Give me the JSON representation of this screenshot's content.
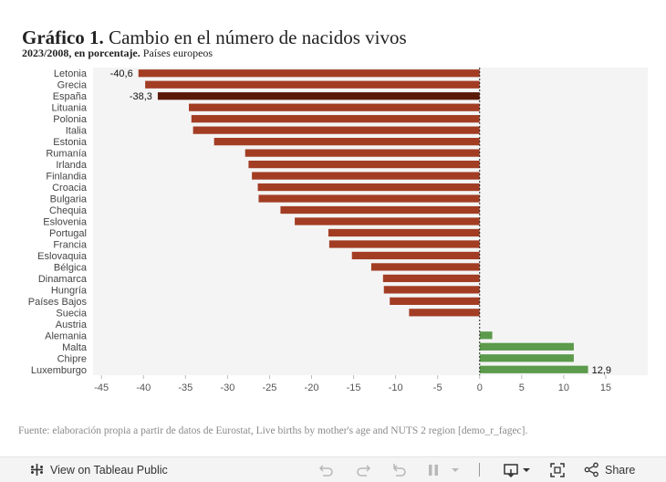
{
  "header": {
    "title_bold": "Gráfico 1.",
    "title_rest": "Cambio en el número de nacidos vivos",
    "subtitle_bold": "2023/2008, en porcentaje.",
    "subtitle_rest": "Países europeos"
  },
  "chart_data": {
    "type": "bar",
    "orientation": "horizontal",
    "title": "Cambio en el número de nacidos vivos",
    "subtitle": "2023/2008, en porcentaje. Países europeos",
    "xlabel": "",
    "ylabel": "",
    "xlim": [
      -46,
      20
    ],
    "xticks": [
      -45,
      -40,
      -35,
      -30,
      -25,
      -20,
      -15,
      -10,
      -5,
      0,
      5,
      10,
      15
    ],
    "grid": false,
    "categories": [
      "Letonia",
      "Grecia",
      "España",
      "Lituania",
      "Polonia",
      "Italia",
      "Estonia",
      "Rumanía",
      "Irlanda",
      "Finlandia",
      "Croacia",
      "Bulgaria",
      "Chequia",
      "Eslovenia",
      "Portugal",
      "Francia",
      "Eslovaquia",
      "Bélgica",
      "Dinamarca",
      "Hungría",
      "Países Bajos",
      "Suecia",
      "Austria",
      "Alemania",
      "Malta",
      "Chipre",
      "Luxemburgo"
    ],
    "values": [
      -40.6,
      -39.8,
      -38.3,
      -34.6,
      -34.3,
      -34.1,
      -31.6,
      -27.9,
      -27.5,
      -27.1,
      -26.4,
      -26.3,
      -23.7,
      -22.0,
      -18.0,
      -17.9,
      -15.2,
      -12.9,
      -11.5,
      -11.4,
      -10.7,
      -8.4,
      0.0,
      1.5,
      11.2,
      11.2,
      12.9
    ],
    "data_labels": [
      {
        "index": 0,
        "text": "-40,6"
      },
      {
        "index": 2,
        "text": "-38,3"
      },
      {
        "index": 26,
        "text": "12,9"
      }
    ],
    "highlight_index": 2,
    "colors": {
      "negative": "#a23d24",
      "highlight": "#5a1a0a",
      "positive": "#5c9a4c",
      "plot_bg": "#f4f4f4",
      "zero_line": "#222222"
    }
  },
  "footer": {
    "source": "Fuente: elaboración propia a partir de datos de Eurostat, Live births by mother's age and NUTS 2 region [demo_r_fagec]."
  },
  "toolbar": {
    "view_label": "View on Tableau Public",
    "share_label": "Share",
    "icons": [
      "tableau-logo-icon",
      "undo-icon",
      "redo-icon",
      "revert-icon",
      "pause-icon",
      "download-icon",
      "fullscreen-icon",
      "share-icon"
    ]
  }
}
